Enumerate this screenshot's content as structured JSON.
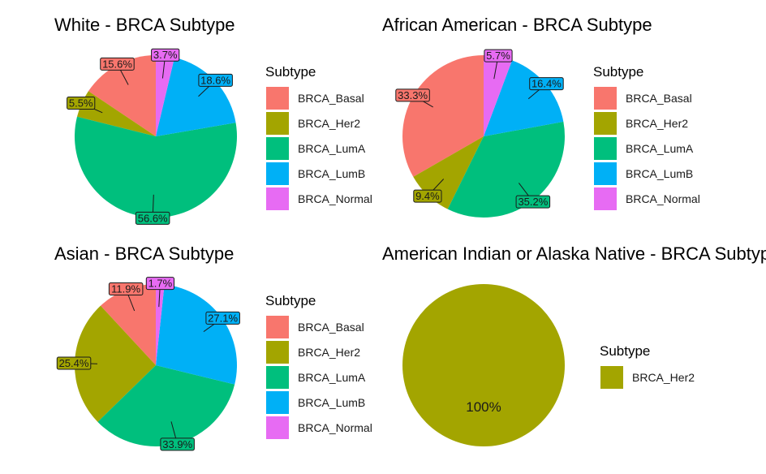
{
  "colors": {
    "BRCA_Basal": "#F8766D",
    "BRCA_Her2": "#A3A500",
    "BRCA_LumA": "#00BF7D",
    "BRCA_LumB": "#00B0F6",
    "BRCA_Normal": "#E76BF3"
  },
  "chart_data": [
    {
      "type": "pie",
      "title": "White - BRCA Subtype",
      "legend_title": "Subtype",
      "legend_position": "right",
      "categories": [
        "BRCA_Basal",
        "BRCA_Her2",
        "BRCA_LumA",
        "BRCA_LumB",
        "BRCA_Normal"
      ],
      "values": [
        15.6,
        5.5,
        56.6,
        18.6,
        3.7
      ],
      "labels": [
        "15.6%",
        "5.5%",
        "56.6%",
        "18.6%",
        "3.7%"
      ]
    },
    {
      "type": "pie",
      "title": "African American - BRCA Subtype",
      "legend_title": "Subtype",
      "legend_position": "right",
      "categories": [
        "BRCA_Basal",
        "BRCA_Her2",
        "BRCA_LumA",
        "BRCA_LumB",
        "BRCA_Normal"
      ],
      "values": [
        33.3,
        9.4,
        35.2,
        16.4,
        5.7
      ],
      "labels": [
        "33.3%",
        "9.4%",
        "35.2%",
        "16.4%",
        "5.7%"
      ]
    },
    {
      "type": "pie",
      "title": "Asian - BRCA Subtype",
      "legend_title": "Subtype",
      "legend_position": "right",
      "categories": [
        "BRCA_Basal",
        "BRCA_Her2",
        "BRCA_LumA",
        "BRCA_LumB",
        "BRCA_Normal"
      ],
      "values": [
        11.9,
        25.4,
        33.9,
        27.1,
        1.7
      ],
      "labels": [
        "11.9%",
        "25.4%",
        "33.9%",
        "27.1%",
        "1.7%"
      ]
    },
    {
      "type": "pie",
      "title": "American Indian or Alaska Native - BRCA Subtype",
      "legend_title": "Subtype",
      "legend_position": "right",
      "categories": [
        "BRCA_Her2"
      ],
      "values": [
        100
      ],
      "labels": [
        "100%"
      ]
    }
  ]
}
